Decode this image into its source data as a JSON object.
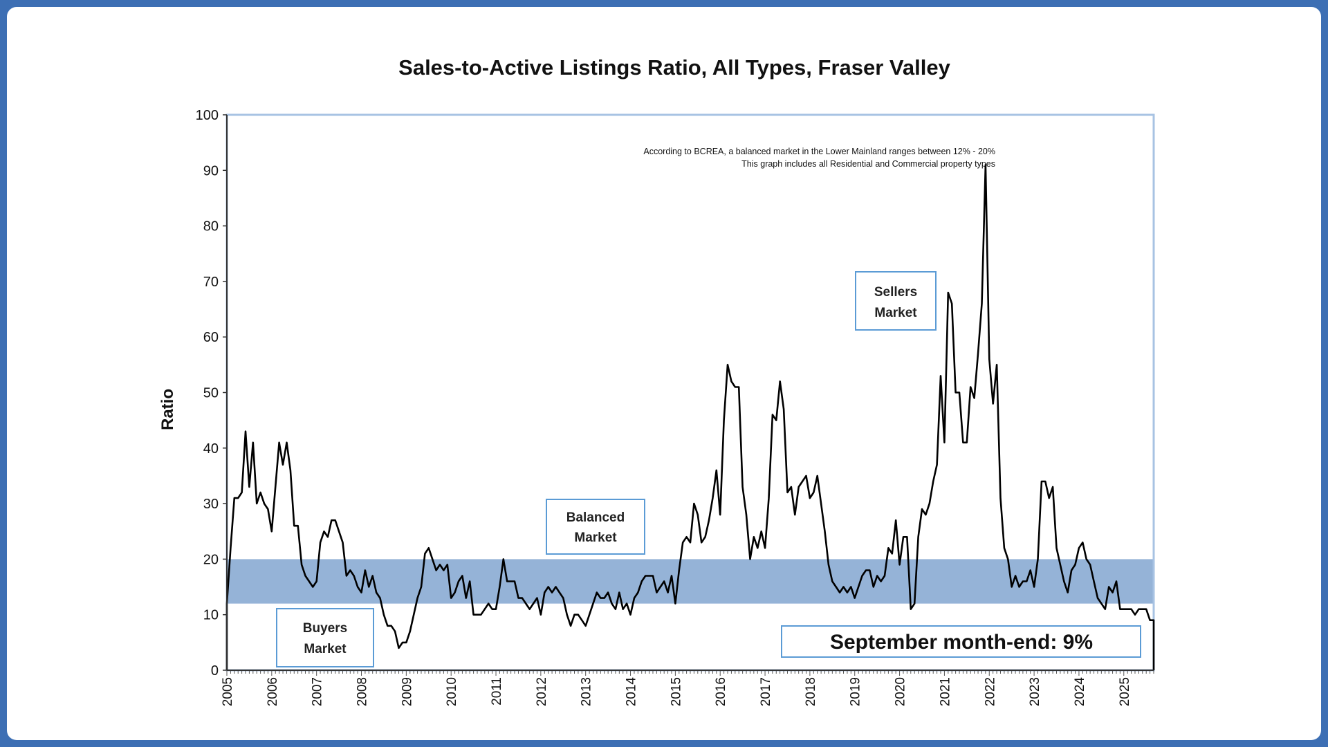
{
  "chart_data": {
    "type": "line",
    "title": "Sales-to-Active Listings Ratio, All Types, Fraser Valley",
    "xlabel": "",
    "ylabel": "Ratio",
    "ylim": [
      0,
      100
    ],
    "yticks": [
      "0",
      "10",
      "20",
      "30",
      "40",
      "50",
      "60",
      "70",
      "80",
      "90",
      "100"
    ],
    "xticks": [
      "2005",
      "2006",
      "2007",
      "2008",
      "2009",
      "2010",
      "2011",
      "2012",
      "2013",
      "2014",
      "2015",
      "2016",
      "2017",
      "2018",
      "2019",
      "2020",
      "2021",
      "2022",
      "2023",
      "2024",
      "2025"
    ],
    "start": "2005-01",
    "frequency": "monthly",
    "grid": false,
    "balanced_band": {
      "low": 12,
      "high": 20,
      "color": "#95b3d7"
    },
    "series": [
      {
        "name": "Sales-to-Active Listings Ratio",
        "color": "#000000",
        "values": [
          12,
          22,
          31,
          31,
          32,
          43,
          33,
          41,
          30,
          32,
          30,
          29,
          25,
          33,
          41,
          37,
          41,
          36,
          26,
          26,
          19,
          17,
          16,
          15,
          16,
          23,
          25,
          24,
          27,
          27,
          25,
          23,
          17,
          18,
          17,
          15,
          14,
          18,
          15,
          17,
          14,
          13,
          10,
          8,
          8,
          7,
          4,
          5,
          5,
          7,
          10,
          13,
          15,
          21,
          22,
          20,
          18,
          19,
          18,
          19,
          13,
          14,
          16,
          17,
          13,
          16,
          10,
          10,
          10,
          11,
          12,
          11,
          11,
          15,
          20,
          16,
          16,
          16,
          13,
          13,
          12,
          11,
          12,
          13,
          10,
          14,
          15,
          14,
          15,
          14,
          13,
          10,
          8,
          10,
          10,
          9,
          8,
          10,
          12,
          14,
          13,
          13,
          14,
          12,
          11,
          14,
          11,
          12,
          10,
          13,
          14,
          16,
          17,
          17,
          17,
          14,
          15,
          16,
          14,
          17,
          12,
          18,
          23,
          24,
          23,
          30,
          28,
          23,
          24,
          27,
          31,
          36,
          28,
          45,
          55,
          52,
          51,
          51,
          33,
          28,
          20,
          24,
          22,
          25,
          22,
          31,
          46,
          45,
          52,
          47,
          32,
          33,
          28,
          33,
          34,
          35,
          31,
          32,
          35,
          30,
          25,
          19,
          16,
          15,
          14,
          15,
          14,
          15,
          13,
          15,
          17,
          18,
          18,
          15,
          17,
          16,
          17,
          22,
          21,
          27,
          19,
          24,
          24,
          11,
          12,
          24,
          29,
          28,
          30,
          34,
          37,
          53,
          41,
          68,
          66,
          50,
          50,
          41,
          41,
          51,
          49,
          57,
          66,
          91,
          56,
          48,
          55,
          31,
          22,
          20,
          15,
          17,
          15,
          16,
          16,
          18,
          15,
          20,
          34,
          34,
          31,
          33,
          22,
          19,
          16,
          14,
          18,
          19,
          22,
          23,
          20,
          19,
          16,
          13,
          12,
          11,
          15,
          14,
          16,
          11,
          11,
          11,
          11,
          10,
          11,
          11,
          11,
          9,
          9
        ]
      }
    ],
    "annotations": {
      "note_line1": "According to BCREA, a balanced market in the Lower Mainland ranges between 12% - 20%",
      "note_line2": "This graph includes all Residential and Commercial property types",
      "sellers_line1": "Sellers",
      "sellers_line2": "Market",
      "balanced_line1": "Balanced",
      "balanced_line2": "Market",
      "buyers_line1": "Buyers",
      "buyers_line2": "Market",
      "month_end": "September month-end: 9%"
    }
  }
}
